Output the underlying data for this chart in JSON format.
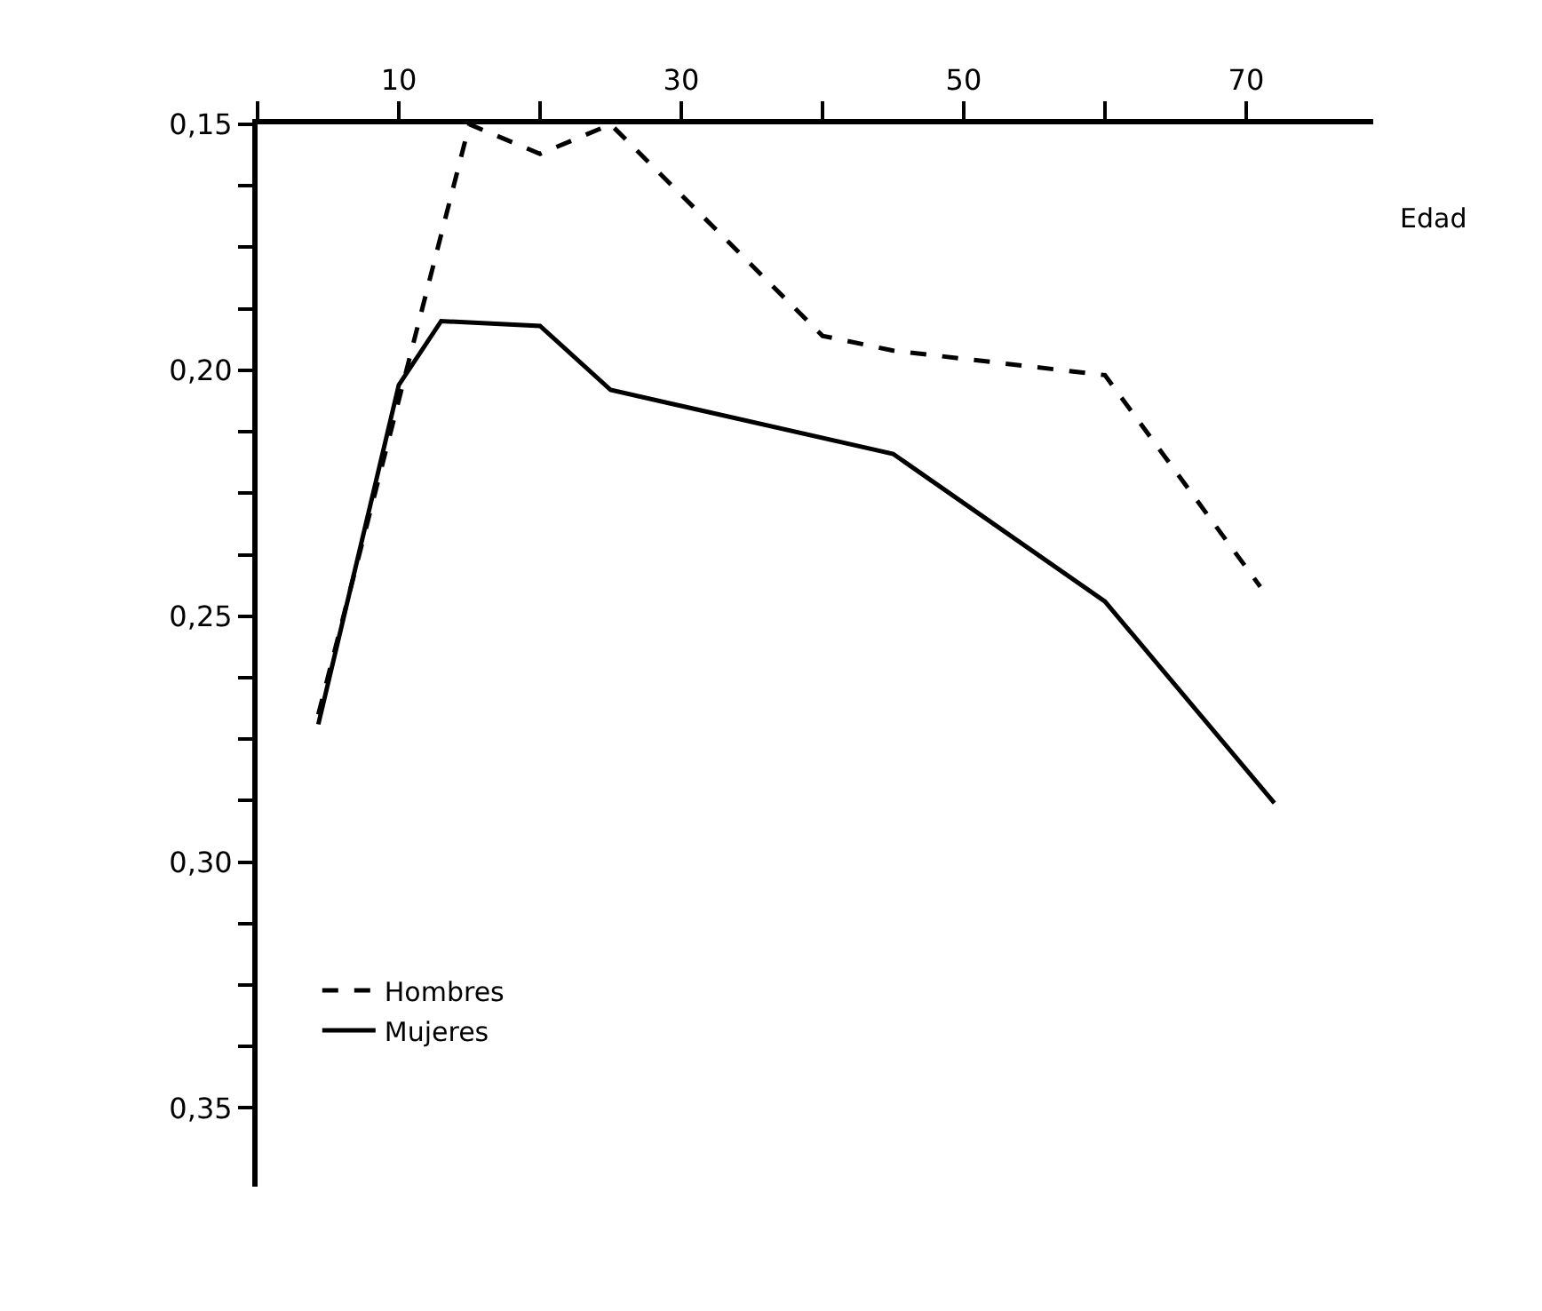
{
  "chart_data": {
    "type": "line",
    "xlabel": "Edad",
    "legend": "bottom left",
    "marker": "none",
    "xlim": [
      0,
      79
    ],
    "ylim": [
      0.366,
      0.15
    ],
    "xticks": [
      {
        "value": 0,
        "label": null
      },
      10,
      {
        "value": 20,
        "label": null
      },
      30,
      {
        "value": 40,
        "label": null
      },
      50,
      {
        "value": 60,
        "label": null
      },
      70
    ],
    "yticks": [
      {
        "value": 0.15,
        "label": "0,15"
      },
      {
        "value": 0.1625,
        "label": null
      },
      {
        "value": 0.175,
        "label": null
      },
      {
        "value": 0.1875,
        "label": null
      },
      {
        "value": 0.2,
        "label": "0,20"
      },
      {
        "value": 0.2125,
        "label": null
      },
      {
        "value": 0.225,
        "label": null
      },
      {
        "value": 0.2375,
        "label": null
      },
      {
        "value": 0.25,
        "label": "0,25"
      },
      {
        "value": 0.2625,
        "label": null
      },
      {
        "value": 0.275,
        "label": null
      },
      {
        "value": 0.2875,
        "label": null
      },
      {
        "value": 0.3,
        "label": "0,30"
      },
      {
        "value": 0.3125,
        "label": null
      },
      {
        "value": 0.325,
        "label": null
      },
      {
        "value": 0.3375,
        "label": null
      },
      {
        "value": 0.35,
        "label": "0,35"
      }
    ],
    "series": [
      {
        "name": "Hombres",
        "color": "#000000",
        "line_style": "dashed",
        "x": [
          4.3,
          15,
          20,
          25,
          40,
          45,
          60,
          71
        ],
        "values": [
          0.27,
          0.15,
          0.156,
          0.15,
          0.193,
          0.196,
          0.201,
          0.244
        ]
      },
      {
        "name": "Mujeres",
        "color": "#000000",
        "line_style": "solid",
        "x": [
          4.3,
          10,
          13,
          20,
          25,
          45,
          60,
          72
        ],
        "values": [
          0.272,
          0.203,
          0.19,
          0.191,
          0.204,
          0.217,
          0.247,
          0.288
        ]
      }
    ]
  }
}
